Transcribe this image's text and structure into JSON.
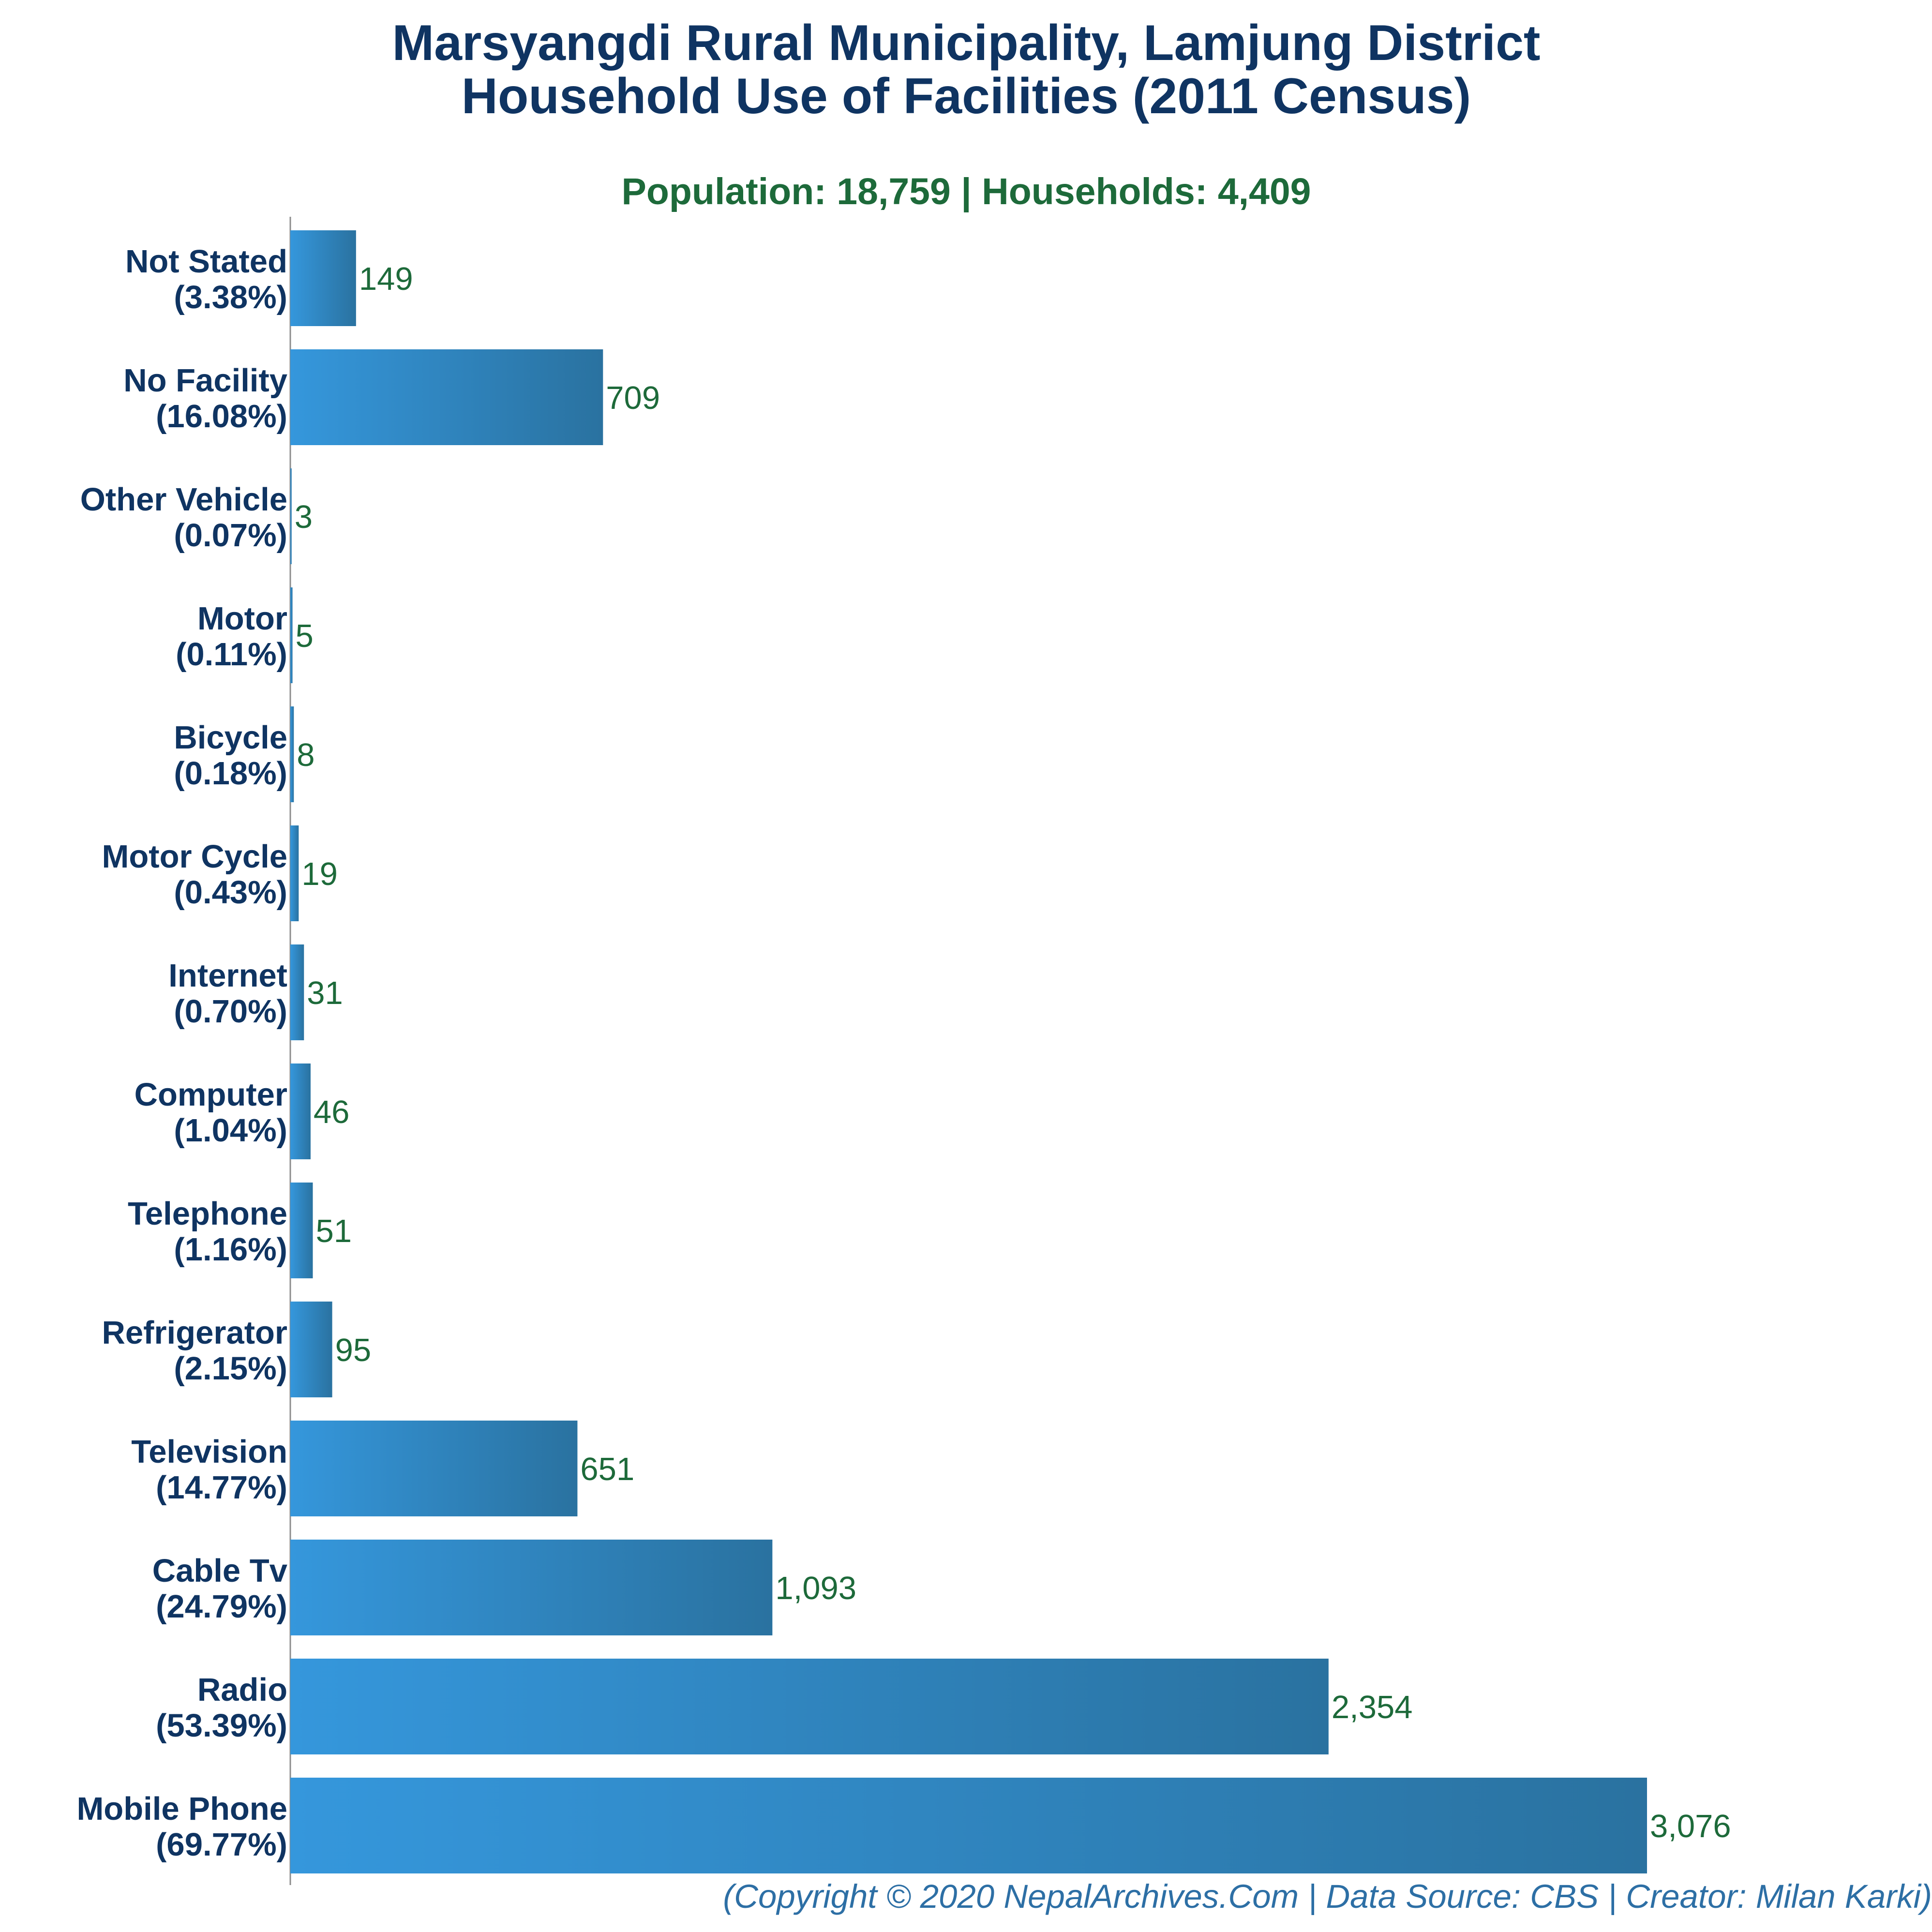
{
  "colors": {
    "title": "#0f3462",
    "subtitle": "#1d6a3a",
    "category_label": "#0f3462",
    "value_label": "#1d6a3a",
    "footer": "#2d6fa5",
    "bar_start": "#3597dc",
    "bar_end": "#2a72a0",
    "axis": "#8c8c8c"
  },
  "footer": "(Copyright © 2020 NepalArchives.Com | Data Source: CBS | Creator: Milan Karki)",
  "chart_data": {
    "type": "bar",
    "orientation": "horizontal",
    "title": "Marsyangdi Rural Municipality, Lamjung District",
    "title_line2": "Household Use of Facilities (2011 Census)",
    "subtitle": "Population: 18,759 | Households: 4,409",
    "grid": false,
    "legend": "none",
    "xlim": [
      0,
      3076
    ],
    "categories": [
      {
        "name": "Not Stated",
        "percent": "(3.38%)"
      },
      {
        "name": "No Facility",
        "percent": "(16.08%)"
      },
      {
        "name": "Other Vehicle",
        "percent": "(0.07%)"
      },
      {
        "name": "Motor",
        "percent": "(0.11%)"
      },
      {
        "name": "Bicycle",
        "percent": "(0.18%)"
      },
      {
        "name": "Motor Cycle",
        "percent": "(0.43%)"
      },
      {
        "name": "Internet",
        "percent": "(0.70%)"
      },
      {
        "name": "Computer",
        "percent": "(1.04%)"
      },
      {
        "name": "Telephone",
        "percent": "(1.16%)"
      },
      {
        "name": "Refrigerator",
        "percent": "(2.15%)"
      },
      {
        "name": "Television",
        "percent": "(14.77%)"
      },
      {
        "name": "Cable Tv",
        "percent": "(24.79%)"
      },
      {
        "name": "Radio",
        "percent": "(53.39%)"
      },
      {
        "name": "Mobile Phone",
        "percent": "(69.77%)"
      }
    ],
    "values": [
      149,
      709,
      3,
      5,
      8,
      19,
      31,
      46,
      51,
      95,
      651,
      1093,
      2354,
      3076
    ],
    "value_labels": [
      "149",
      "709",
      "3",
      "5",
      "8",
      "19",
      "31",
      "46",
      "51",
      "95",
      "651",
      "1,093",
      "2,354",
      "3,076"
    ]
  }
}
